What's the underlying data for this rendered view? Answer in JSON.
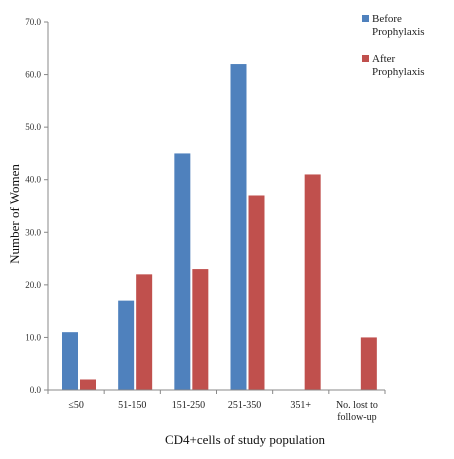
{
  "chart_data": {
    "type": "bar",
    "title": "",
    "xlabel": "CD4+cells of study population",
    "ylabel": "Number of Women",
    "ylim": [
      0,
      70
    ],
    "yticks": [
      "0.0",
      "10.0",
      "20.0",
      "30.0",
      "40.0",
      "50.0",
      "60.0",
      "70.0"
    ],
    "grid": false,
    "legend_position": "top-right",
    "categories": [
      "≤50",
      "51-150",
      "151-250",
      "251-350",
      "351+",
      "No. lost to follow-up"
    ],
    "series": [
      {
        "name": "Before Prophylaxis",
        "legend_lines": [
          "Before",
          "Prophylaxis"
        ],
        "color": "#4F81BD",
        "values": [
          11,
          17,
          45,
          62,
          null,
          null
        ]
      },
      {
        "name": "After Prophylaxis",
        "legend_lines": [
          "After",
          "Prophylaxis"
        ],
        "color": "#C0504D",
        "values": [
          2,
          22,
          23,
          37,
          41,
          10
        ]
      }
    ]
  }
}
